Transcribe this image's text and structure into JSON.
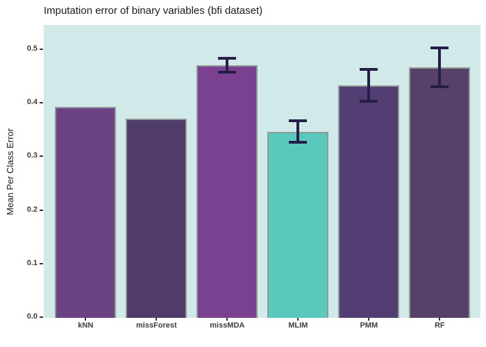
{
  "chart_data": {
    "type": "bar",
    "title": "Imputation error of binary variables (bfi dataset)",
    "xlabel": "",
    "ylabel": "Mean Per Class Error",
    "categories": [
      "kNN",
      "missForest",
      "missMDA",
      "MLIM",
      "PMM",
      "RF"
    ],
    "values": [
      0.393,
      0.37,
      0.47,
      0.346,
      0.433,
      0.466
    ],
    "error_bars": [
      null,
      null,
      {
        "low": 0.457,
        "high": 0.483
      },
      {
        "low": 0.326,
        "high": 0.367
      },
      {
        "low": 0.403,
        "high": 0.462
      },
      {
        "low": 0.43,
        "high": 0.503
      }
    ],
    "bar_colors": [
      "#6b4282",
      "#503c68",
      "#79418f",
      "#5ac8bd",
      "#533e74",
      "#574169"
    ],
    "bar_border_color": "#919a99",
    "error_bar_color": "#251e47",
    "panel_background": "#d1e9e8",
    "yticks": [
      0.0,
      0.1,
      0.2,
      0.3,
      0.4,
      0.5
    ],
    "ylim": [
      0,
      0.545
    ],
    "grid": "off",
    "legend": "none"
  }
}
